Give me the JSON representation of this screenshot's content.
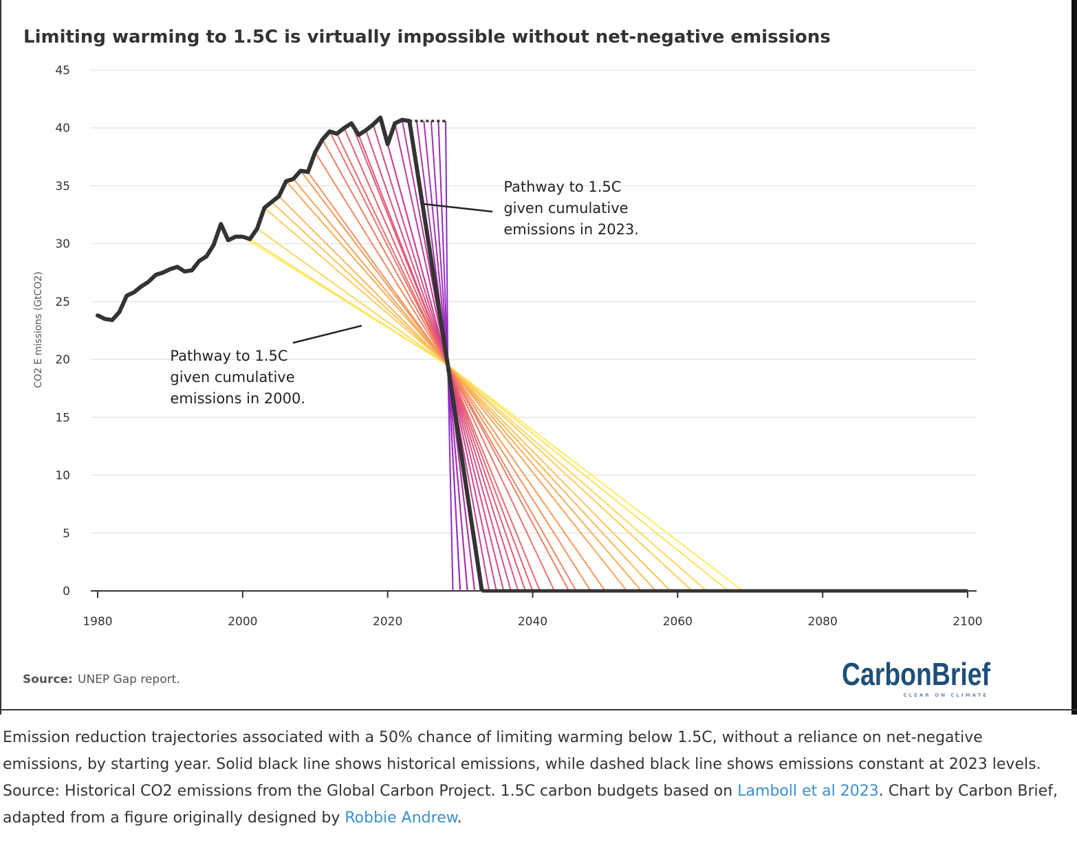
{
  "chart_data": {
    "type": "line",
    "title": "Limiting warming to 1.5C is virtually impossible without net-negative emissions",
    "ylabel": "CO2 E missions (GtCO2)",
    "xlim": [
      1980,
      2100
    ],
    "ylim": [
      0,
      45
    ],
    "x_ticks": [
      1980,
      2000,
      2020,
      2040,
      2060,
      2080,
      2100
    ],
    "y_ticks": [
      0,
      5,
      10,
      15,
      20,
      25,
      30,
      35,
      40,
      45
    ],
    "grid": "horizontal",
    "series": [
      {
        "role": "historical",
        "x": [
          1980,
          1981,
          1982,
          1983,
          1984,
          1985,
          1986,
          1987,
          1988,
          1989,
          1990,
          1991,
          1992,
          1993,
          1994,
          1995,
          1996,
          1997,
          1998,
          1999,
          2000,
          2001,
          2002,
          2003,
          2004,
          2005,
          2006,
          2007,
          2008,
          2009,
          2010,
          2011,
          2012,
          2013,
          2014,
          2015,
          2016,
          2017,
          2018,
          2019,
          2020,
          2021,
          2022,
          2023
        ],
        "y": [
          23.8,
          23.5,
          23.4,
          24.1,
          25.5,
          25.8,
          26.3,
          26.7,
          27.3,
          27.5,
          27.8,
          28.0,
          27.6,
          27.7,
          28.5,
          28.9,
          29.9,
          31.7,
          30.3,
          30.6,
          30.6,
          30.4,
          31.3,
          33.1,
          33.6,
          34.1,
          35.4,
          35.6,
          36.3,
          36.2,
          37.9,
          39.0,
          39.7,
          39.5,
          40.0,
          40.4,
          39.4,
          39.8,
          40.3,
          40.9,
          38.6,
          40.4,
          40.7,
          40.6
        ]
      },
      {
        "role": "constant at 2023 levels",
        "x": [
          2023,
          2028
        ],
        "y": [
          40.6,
          40.6
        ]
      },
      {
        "role": "pathways",
        "converge_at": [
          2028.3,
          19.5
        ],
        "start_x": [
          2000,
          2001,
          2002,
          2003,
          2004,
          2005,
          2006,
          2007,
          2008,
          2009,
          2010,
          2011,
          2012,
          2013,
          2014,
          2015,
          2016,
          2017,
          2018,
          2019,
          2020,
          2021,
          2022,
          2023,
          2024,
          2025,
          2026,
          2027,
          2028
        ],
        "zero_x": [
          2069,
          2067,
          2064,
          2062,
          2059,
          2057,
          2055,
          2053,
          2050,
          2048,
          2046,
          2045,
          2043,
          2041,
          2040,
          2039,
          2038,
          2037,
          2036,
          2035,
          2034,
          2033,
          2032,
          2032,
          2031,
          2031,
          2030,
          2030,
          2029
        ]
      }
    ],
    "annotations": [
      {
        "lines": [
          "Pathway to 1.5C",
          "given cumulative",
          "emissions in 2023."
        ],
        "x": 2036,
        "y": 34.5
      },
      {
        "lines": [
          "Pathway to 1.5C",
          "given cumulative",
          "emissions in 2000."
        ],
        "x": 1990,
        "y": 19.9
      }
    ]
  },
  "source": {
    "label": "Source:",
    "text": "UNEP Gap report."
  },
  "logo": {
    "name": "CarbonBrief",
    "tagline": "CLEAR ON CLIMATE"
  },
  "caption": {
    "part1": "Emission reduction trajectories associated with a 50% chance of limiting warming below 1.5C, without a reliance on net-negative emissions, by starting year. Solid black line shows historical emissions, while dashed black line shows emissions constant at 2023 levels. Source: Historical CO2 emissions from the Global Carbon Project. 1.5C carbon budgets based on ",
    "link1": "Lamboll et al 2023",
    "part2": ". Chart by Carbon Brief, adapted from a figure originally designed by ",
    "link2": "Robbie Andrew",
    "part3": "."
  }
}
